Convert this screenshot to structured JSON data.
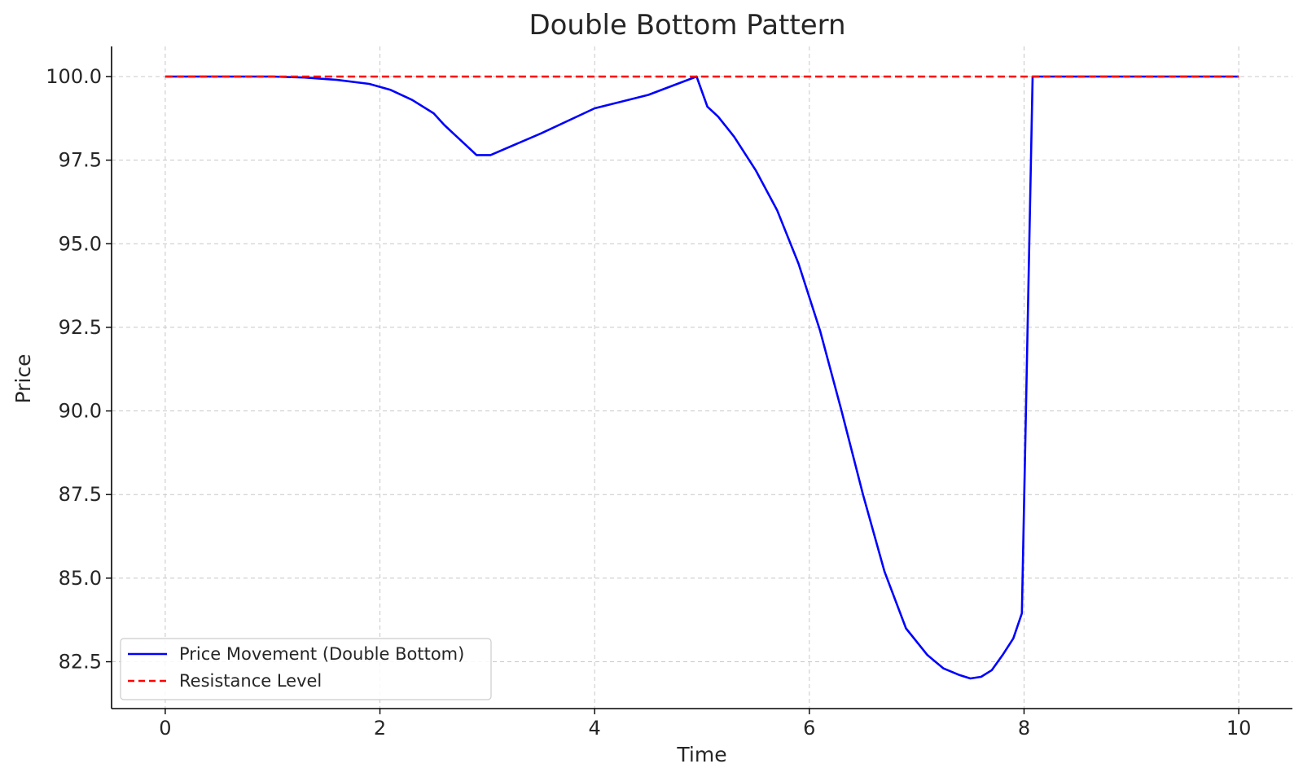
{
  "chart_data": {
    "type": "line",
    "title": "Double Bottom Pattern",
    "xlabel": "Time",
    "ylabel": "Price",
    "xlim": [
      -0.5,
      10.5
    ],
    "ylim": [
      81.1,
      100.9
    ],
    "xticks": [
      0,
      2,
      4,
      6,
      8,
      10
    ],
    "xtick_labels": [
      "0",
      "2",
      "4",
      "6",
      "8",
      "10"
    ],
    "yticks": [
      82.5,
      85.0,
      87.5,
      90.0,
      92.5,
      95.0,
      97.5,
      100.0
    ],
    "ytick_labels": [
      "82.5",
      "85.0",
      "87.5",
      "90.0",
      "92.5",
      "95.0",
      "97.5",
      "100.0"
    ],
    "grid": true,
    "legend_position": "lower-left",
    "series": [
      {
        "name": "Price Movement (Double Bottom)",
        "color": "#0000ff",
        "style": "solid",
        "x": [
          0,
          0.5,
          1.0,
          1.3,
          1.6,
          1.9,
          2.1,
          2.3,
          2.5,
          2.6,
          2.7,
          2.8,
          2.9,
          2.93,
          3.03,
          3.5,
          4.0,
          4.5,
          4.95,
          5.05,
          5.15,
          5.3,
          5.5,
          5.7,
          5.9,
          6.1,
          6.3,
          6.5,
          6.7,
          6.9,
          7.1,
          7.25,
          7.4,
          7.5,
          7.6,
          7.7,
          7.8,
          7.9,
          7.98,
          8.08,
          8.5,
          9.0,
          9.5,
          10.0
        ],
        "y": [
          100.0,
          100.0,
          100.0,
          99.97,
          99.9,
          99.78,
          99.6,
          99.3,
          98.9,
          98.55,
          98.25,
          97.95,
          97.65,
          97.65,
          97.65,
          98.3,
          99.05,
          99.45,
          100.0,
          99.1,
          98.8,
          98.2,
          97.2,
          96.0,
          94.4,
          92.4,
          90.0,
          87.5,
          85.2,
          83.5,
          82.7,
          82.3,
          82.1,
          82.0,
          82.05,
          82.25,
          82.7,
          83.2,
          83.95,
          100.0,
          100.0,
          100.0,
          100.0,
          100.0
        ]
      },
      {
        "name": "Resistance Level",
        "color": "#ff0000",
        "style": "dashed",
        "x": [
          0,
          10
        ],
        "y": [
          100.0,
          100.0
        ]
      }
    ]
  }
}
